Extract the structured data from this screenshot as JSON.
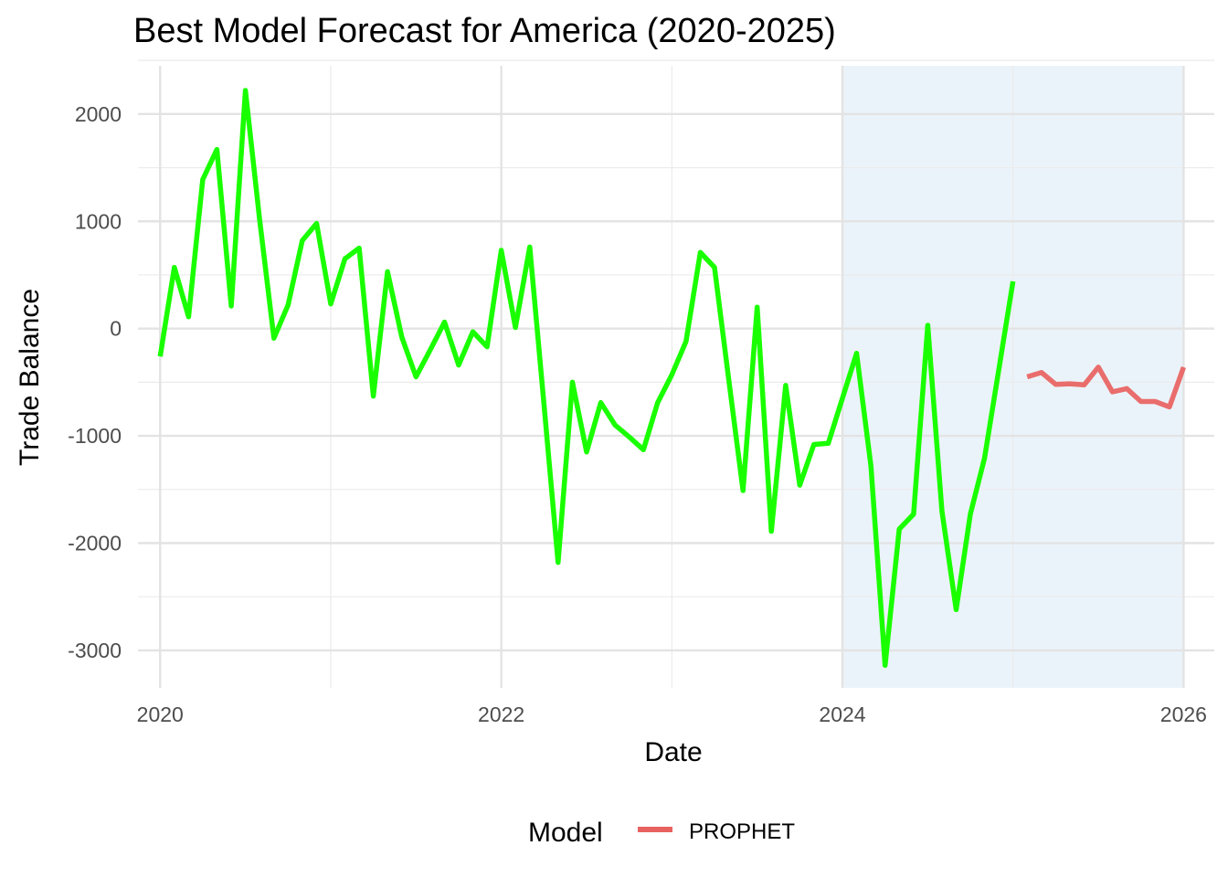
{
  "chart_data": {
    "type": "line",
    "title": "Best Model Forecast for America (2020-2025)",
    "xlabel": "Date",
    "ylabel": "Trade Balance",
    "xlim": [
      2019.87,
      2026.18
    ],
    "ylim": [
      -3350,
      2450
    ],
    "x_ticks": [
      2020,
      2022,
      2024,
      2026
    ],
    "x_tick_labels": [
      "2020",
      "2022",
      "2024",
      "2026"
    ],
    "y_ticks": [
      -3000,
      -2000,
      -1000,
      0,
      1000,
      2000
    ],
    "y_tick_labels": [
      "-3000",
      "-2000",
      "-1000",
      "0",
      "1000",
      "2000"
    ],
    "grid": true,
    "legend": {
      "title": "Model",
      "position": "bottom"
    },
    "highlight_region": {
      "x_start": 2024.0,
      "x_end": 2026.0,
      "color": "#dbe9f6"
    },
    "series": [
      {
        "role": "actual",
        "color": "#1aff00",
        "x": [
          2020.0,
          2020.083,
          2020.167,
          2020.25,
          2020.333,
          2020.417,
          2020.5,
          2020.583,
          2020.667,
          2020.75,
          2020.833,
          2020.917,
          2021.0,
          2021.083,
          2021.167,
          2021.25,
          2021.333,
          2021.417,
          2021.5,
          2021.583,
          2021.667,
          2021.75,
          2021.833,
          2021.917,
          2022.0,
          2022.083,
          2022.167,
          2022.25,
          2022.333,
          2022.417,
          2022.5,
          2022.583,
          2022.667,
          2022.75,
          2022.833,
          2022.917,
          2023.0,
          2023.083,
          2023.167,
          2023.25,
          2023.333,
          2023.417,
          2023.5,
          2023.583,
          2023.667,
          2023.75,
          2023.833,
          2023.917,
          2024.0,
          2024.083,
          2024.167,
          2024.25,
          2024.333,
          2024.417,
          2024.5,
          2024.583,
          2024.667,
          2024.75,
          2024.833,
          2024.917,
          2025.0
        ],
        "values": [
          -260,
          570,
          110,
          1390,
          1670,
          210,
          2220,
          1020,
          -90,
          220,
          820,
          980,
          230,
          650,
          750,
          -630,
          530,
          -80,
          -450,
          -200,
          60,
          -340,
          -30,
          -170,
          730,
          10,
          760,
          -700,
          -2180,
          -500,
          -1150,
          -690,
          -900,
          -1010,
          -1130,
          -690,
          -430,
          -120,
          710,
          570,
          -470,
          -1510,
          200,
          -1890,
          -530,
          -1460,
          -1080,
          -1070,
          -650,
          -230,
          -1280,
          -3140,
          -1870,
          -1730,
          30,
          -1700,
          -2620,
          -1730,
          -1210,
          -380,
          440
        ]
      },
      {
        "name": "PROPHET",
        "color": "#e8625f",
        "x": [
          2025.083,
          2025.167,
          2025.25,
          2025.333,
          2025.417,
          2025.5,
          2025.583,
          2025.667,
          2025.75,
          2025.833,
          2025.917,
          2026.0
        ],
        "values": [
          -450,
          -410,
          -520,
          -515,
          -525,
          -360,
          -590,
          -560,
          -680,
          -680,
          -730,
          -360
        ]
      }
    ]
  }
}
